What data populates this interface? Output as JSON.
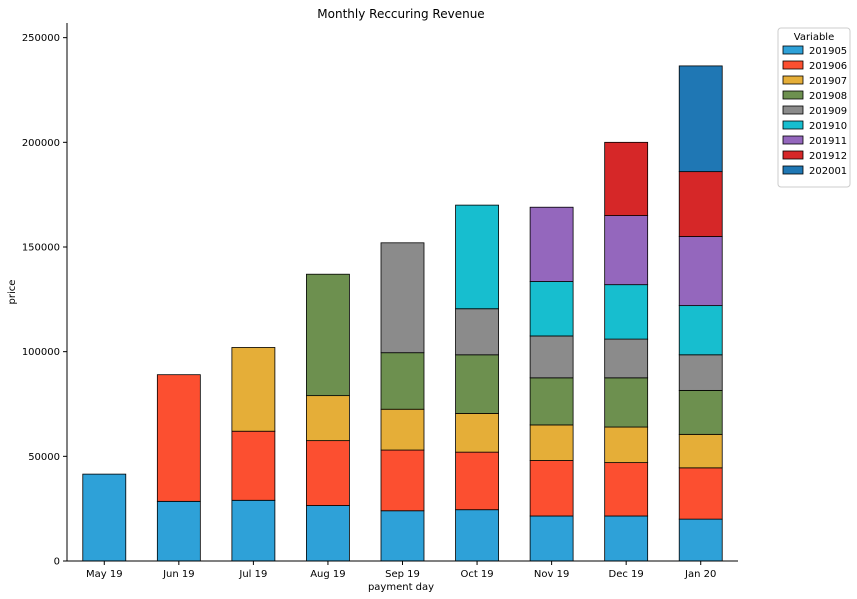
{
  "chart_data": {
    "type": "bar",
    "stacked": true,
    "title": "Monthly Reccuring Revenue",
    "xlabel": "payment day",
    "ylabel": "price",
    "ylim": [
      0,
      257000
    ],
    "yticks": [
      0,
      50000,
      100000,
      150000,
      200000,
      250000
    ],
    "categories": [
      "May 19",
      "Jun 19",
      "Jul 19",
      "Aug 19",
      "Sep 19",
      "Oct 19",
      "Nov 19",
      "Dec 19",
      "Jan 20"
    ],
    "legend": {
      "title": "Variable",
      "placement": "upper right, outside plot"
    },
    "grid": false,
    "series": [
      {
        "name": "201905",
        "color": "#2ea1d8",
        "values": [
          41500,
          28500,
          29000,
          26500,
          24000,
          24500,
          21500,
          21500,
          20000
        ]
      },
      {
        "name": "201906",
        "color": "#fc4f30",
        "values": [
          0,
          60500,
          33000,
          31000,
          29000,
          27500,
          26500,
          25500,
          24500
        ]
      },
      {
        "name": "201907",
        "color": "#e5ae38",
        "values": [
          0,
          0,
          40000,
          21500,
          19500,
          18500,
          17000,
          17000,
          16000
        ]
      },
      {
        "name": "201908",
        "color": "#6d904f",
        "values": [
          0,
          0,
          0,
          58000,
          27000,
          28000,
          22500,
          23500,
          21000
        ]
      },
      {
        "name": "201909",
        "color": "#8b8b8b",
        "values": [
          0,
          0,
          0,
          0,
          52500,
          22000,
          20000,
          18500,
          17000
        ]
      },
      {
        "name": "201910",
        "color": "#17becf",
        "values": [
          0,
          0,
          0,
          0,
          0,
          49500,
          26000,
          26000,
          23500
        ]
      },
      {
        "name": "201911",
        "color": "#9467bd",
        "values": [
          0,
          0,
          0,
          0,
          0,
          0,
          35500,
          33000,
          33000
        ]
      },
      {
        "name": "201912",
        "color": "#d62728",
        "values": [
          0,
          0,
          0,
          0,
          0,
          0,
          0,
          35000,
          31000
        ]
      },
      {
        "name": "202001",
        "color": "#1f77b4",
        "values": [
          0,
          0,
          0,
          0,
          0,
          0,
          0,
          0,
          50500
        ]
      }
    ]
  }
}
